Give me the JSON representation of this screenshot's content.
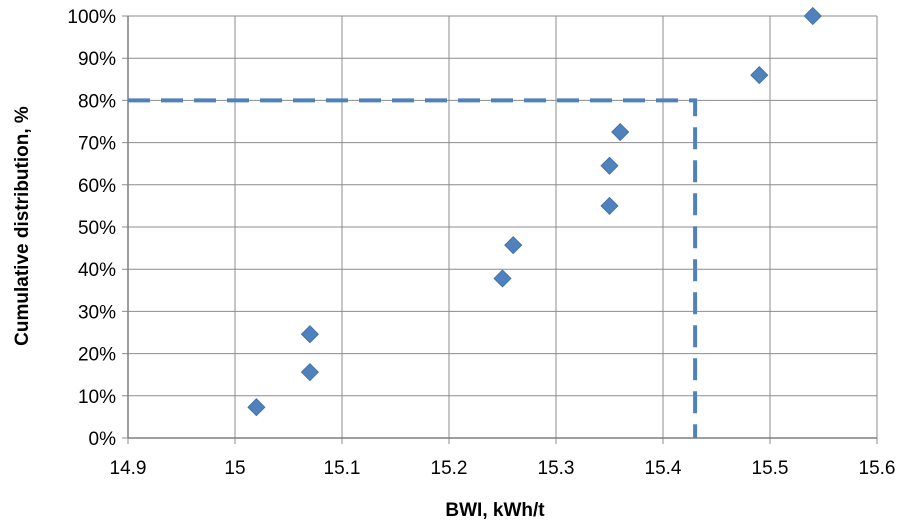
{
  "chart_data": {
    "type": "scatter",
    "title": "",
    "xlabel": "BWI, kWh/t",
    "ylabel": "Cumulative distribution, %",
    "xlim": [
      14.9,
      15.6
    ],
    "ylim": [
      0,
      100
    ],
    "x_ticks": [
      "14.9",
      "15",
      "15.1",
      "15.2",
      "15.3",
      "15.4",
      "15.5",
      "15.6"
    ],
    "y_ticks": [
      "0%",
      "10%",
      "20%",
      "30%",
      "40%",
      "50%",
      "60%",
      "70%",
      "80%",
      "90%",
      "100%"
    ],
    "grid": true,
    "legend": "none",
    "marker": "diamond",
    "series": [
      {
        "x": [
          15.02,
          15.07,
          15.07,
          15.25,
          15.26,
          15.35,
          15.35,
          15.36,
          15.49,
          15.54
        ],
        "y": [
          7.3,
          15.6,
          24.6,
          37.8,
          45.7,
          55.0,
          64.5,
          72.5,
          86.0,
          100.0
        ],
        "color": "#4f81bd"
      }
    ],
    "reference_line": {
      "style": "dashed",
      "color": "#4f81bd",
      "points": [
        [
          14.9,
          80
        ],
        [
          15.43,
          80
        ],
        [
          15.43,
          0
        ]
      ]
    }
  }
}
